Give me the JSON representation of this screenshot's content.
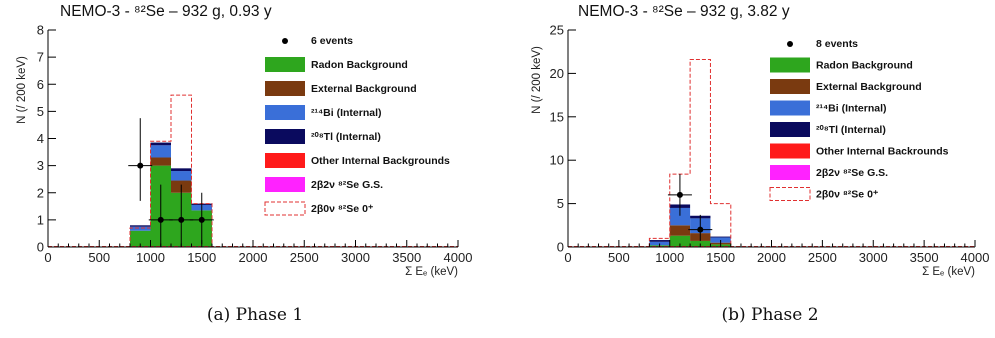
{
  "captions": [
    "(a) Phase 1",
    "(b) Phase 2"
  ],
  "chart_data": [
    {
      "type": "bar",
      "title": "NEMO-3 - ⁸²Se – 932 g, 0.93 y",
      "xlabel": "Σ Eₑ (keV)",
      "ylabel": "N (/ 200 keV)",
      "xlim": [
        0,
        4000
      ],
      "ylim": [
        0,
        8
      ],
      "xticks": [
        "0",
        "500",
        "1000",
        "1500",
        "2000",
        "2500",
        "3000",
        "3500",
        "4000"
      ],
      "yticks": [
        "0",
        "1",
        "2",
        "3",
        "4",
        "5",
        "6",
        "7",
        "8"
      ],
      "bin_edges": [
        800,
        1000,
        1200,
        1400,
        1600
      ],
      "series": [
        {
          "name": "Radon Background",
          "color": "#2ea61e",
          "values": [
            0.6,
            3.0,
            2.0,
            1.35
          ]
        },
        {
          "name": "External Background",
          "color": "#7a3a10",
          "values": [
            0.0,
            0.3,
            0.45,
            0.0
          ]
        },
        {
          "name": "²¹⁴Bi (Internal)",
          "color": "#3a6fd8",
          "values": [
            0.15,
            0.45,
            0.35,
            0.2
          ]
        },
        {
          "name": "²⁰⁸Tl (Internal)",
          "color": "#0a0a5e",
          "values": [
            0.05,
            0.1,
            0.1,
            0.05
          ]
        },
        {
          "name": "Other Internal Backgrounds",
          "color": "#ff1a1a",
          "values": [
            0,
            0,
            0,
            0
          ]
        },
        {
          "name": "2β2ν ⁸²Se G.S.",
          "color": "#ff22ff",
          "values": [
            0,
            0,
            0,
            0
          ]
        }
      ],
      "signal": {
        "name": "2β0ν ⁸²Se 0⁺",
        "color": "#e03030",
        "values": [
          0.7,
          3.9,
          5.6,
          1.6
        ]
      },
      "data_points": {
        "name": "6 events",
        "x": [
          900,
          1100,
          1300,
          1500
        ],
        "y": [
          3,
          1,
          1,
          1
        ],
        "err_hi": [
          1.75,
          1.3,
          1.3,
          1.0
        ],
        "err_lo": [
          1.3,
          1.0,
          1.0,
          0.9
        ]
      },
      "legend_position": "top-right"
    },
    {
      "type": "bar",
      "title": "NEMO-3 - ⁸²Se – 932 g, 3.82 y",
      "xlabel": "Σ Eₑ (keV)",
      "ylabel": "N (/ 200 keV)",
      "xlim": [
        0,
        4000
      ],
      "ylim": [
        0,
        25
      ],
      "xticks": [
        "0",
        "500",
        "1000",
        "1500",
        "2000",
        "2500",
        "3000",
        "3500",
        "4000"
      ],
      "yticks": [
        "0",
        "5",
        "10",
        "15",
        "20",
        "25"
      ],
      "bin_edges": [
        800,
        1000,
        1200,
        1400,
        1600
      ],
      "series": [
        {
          "name": "Radon Background",
          "color": "#2ea61e",
          "values": [
            0.2,
            1.3,
            0.7,
            0.3
          ]
        },
        {
          "name": "External Background",
          "color": "#7a3a10",
          "values": [
            0.0,
            1.2,
            0.9,
            0.2
          ]
        },
        {
          "name": "²¹⁴Bi (Internal)",
          "color": "#3a6fd8",
          "values": [
            0.4,
            2.0,
            1.7,
            0.6
          ]
        },
        {
          "name": "²⁰⁸Tl (Internal)",
          "color": "#0a0a5e",
          "values": [
            0.2,
            0.4,
            0.3,
            0.1
          ]
        },
        {
          "name": "Other Internal Backrounds",
          "color": "#ff1a1a",
          "values": [
            0,
            0,
            0,
            0
          ]
        },
        {
          "name": "2β2ν ⁸²Se G.S.",
          "color": "#ff22ff",
          "values": [
            0,
            0,
            0,
            0
          ]
        }
      ],
      "signal": {
        "name": "2β0ν ⁸²Se 0⁺",
        "color": "#e03030",
        "values": [
          1.0,
          8.4,
          21.6,
          5.0
        ]
      },
      "data_points": {
        "name": "8 events",
        "x": [
          1100,
          1300
        ],
        "y": [
          6,
          2
        ],
        "err_hi": [
          2.4,
          1.7
        ],
        "err_lo": [
          2.4,
          1.3
        ]
      },
      "legend_position": "top-right"
    }
  ]
}
